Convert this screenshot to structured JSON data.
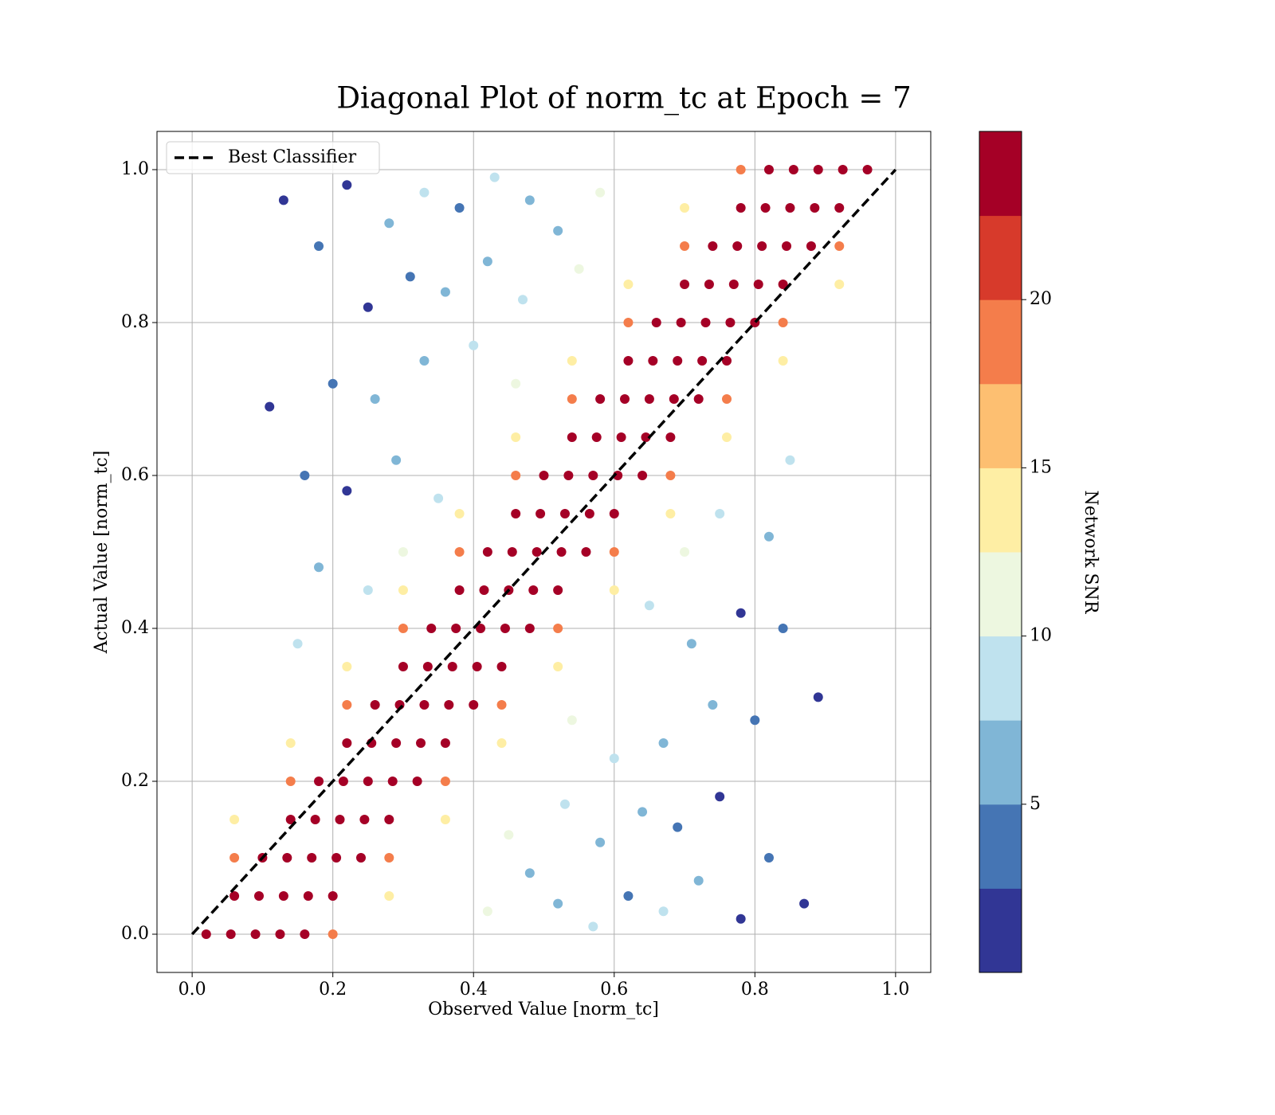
{
  "chart_data": {
    "type": "scatter",
    "title": "Diagonal Plot of norm_tc at Epoch = 7",
    "xlabel": "Observed Value [norm_tc]",
    "ylabel": "Actual Value [norm_tc]",
    "xlim": [
      -0.05,
      1.05
    ],
    "ylim": [
      -0.05,
      1.05
    ],
    "xticks": [
      {
        "value": 0,
        "label": "0.0"
      },
      0.2,
      0.4,
      0.6,
      0.8,
      {
        "value": 1,
        "label": "1.0"
      }
    ],
    "yticks": [
      {
        "value": 0,
        "label": "0.0"
      },
      0.2,
      0.4,
      0.6,
      0.8,
      {
        "value": 1,
        "label": "1.0"
      }
    ],
    "grid": true,
    "legend_loc": "upper left",
    "reference_line": {
      "name": "Best Classifier",
      "color": "#000000",
      "x": [
        0,
        1
      ],
      "y": [
        0,
        1
      ]
    },
    "colorbar": {
      "label": "Network SNR",
      "clim": [
        0,
        25
      ],
      "ticks": [
        5,
        10,
        15,
        20
      ],
      "colors": [
        "#313695",
        "#4575b4",
        "#80b6d6",
        "#bfe2ee",
        "#edf7e0",
        "#feeea4",
        "#fdbf71",
        "#f47d4b",
        "#d73a2b",
        "#a50026"
      ]
    },
    "x": [
      0.13,
      0.18,
      0.22,
      0.28,
      0.33,
      0.38,
      0.43,
      0.48,
      0.52,
      0.58,
      0.25,
      0.31,
      0.36,
      0.42,
      0.47,
      0.55,
      0.2,
      0.26,
      0.33,
      0.4,
      0.46,
      0.16,
      0.22,
      0.29,
      0.35,
      0.18,
      0.25,
      0.3,
      0.11,
      0.15,
      0.87,
      0.82,
      0.78,
      0.72,
      0.67,
      0.62,
      0.57,
      0.52,
      0.48,
      0.42,
      0.75,
      0.69,
      0.64,
      0.58,
      0.53,
      0.45,
      0.8,
      0.74,
      0.67,
      0.6,
      0.54,
      0.84,
      0.78,
      0.71,
      0.65,
      0.82,
      0.75,
      0.7,
      0.89,
      0.85,
      0.28,
      0.06,
      0.36,
      0.14,
      0.44,
      0.22,
      0.52,
      0.3,
      0.6,
      0.38,
      0.68,
      0.46,
      0.76,
      0.54,
      0.84,
      0.62,
      0.92,
      0.7,
      0.2,
      0.06,
      0.28,
      0.14,
      0.36,
      0.22,
      0.44,
      0.3,
      0.52,
      0.38,
      0.6,
      0.46,
      0.68,
      0.54,
      0.76,
      0.62,
      0.84,
      0.7,
      0.92,
      0.78,
      0.02,
      0.055,
      0.09,
      0.125,
      0.16,
      0.06,
      0.095,
      0.13,
      0.165,
      0.2,
      0.1,
      0.135,
      0.17,
      0.205,
      0.24,
      0.14,
      0.175,
      0.21,
      0.245,
      0.28,
      0.18,
      0.215,
      0.25,
      0.285,
      0.32,
      0.22,
      0.255,
      0.29,
      0.325,
      0.36,
      0.26,
      0.295,
      0.33,
      0.365,
      0.4,
      0.3,
      0.335,
      0.37,
      0.405,
      0.44,
      0.34,
      0.375,
      0.41,
      0.445,
      0.48,
      0.38,
      0.415,
      0.45,
      0.485,
      0.52,
      0.42,
      0.455,
      0.49,
      0.525,
      0.56,
      0.46,
      0.495,
      0.53,
      0.565,
      0.6,
      0.5,
      0.535,
      0.57,
      0.605,
      0.64,
      0.54,
      0.575,
      0.61,
      0.645,
      0.68,
      0.58,
      0.615,
      0.65,
      0.685,
      0.72,
      0.62,
      0.655,
      0.69,
      0.725,
      0.76,
      0.66,
      0.695,
      0.73,
      0.765,
      0.8,
      0.7,
      0.735,
      0.77,
      0.805,
      0.84,
      0.74,
      0.775,
      0.81,
      0.845,
      0.88,
      0.78,
      0.815,
      0.85,
      0.885,
      0.92,
      0.82,
      0.855,
      0.89,
      0.925,
      0.96
    ],
    "y": [
      0.96,
      0.9,
      0.98,
      0.93,
      0.97,
      0.95,
      0.99,
      0.96,
      0.92,
      0.97,
      0.82,
      0.86,
      0.84,
      0.88,
      0.83,
      0.87,
      0.72,
      0.7,
      0.75,
      0.77,
      0.72,
      0.6,
      0.58,
      0.62,
      0.57,
      0.48,
      0.45,
      0.5,
      0.69,
      0.38,
      0.04,
      0.1,
      0.02,
      0.07,
      0.03,
      0.05,
      0.01,
      0.04,
      0.08,
      0.03,
      0.18,
      0.14,
      0.16,
      0.12,
      0.17,
      0.13,
      0.28,
      0.3,
      0.25,
      0.23,
      0.28,
      0.4,
      0.42,
      0.38,
      0.43,
      0.52,
      0.55,
      0.5,
      0.31,
      0.62,
      0.05,
      0.15,
      0.15,
      0.25,
      0.25,
      0.35,
      0.35,
      0.45,
      0.45,
      0.55,
      0.55,
      0.65,
      0.65,
      0.75,
      0.75,
      0.85,
      0.85,
      0.95,
      0,
      0.1,
      0.1,
      0.2,
      0.2,
      0.3,
      0.3,
      0.4,
      0.4,
      0.5,
      0.5,
      0.6,
      0.6,
      0.7,
      0.7,
      0.8,
      0.8,
      0.9,
      0.9,
      1,
      0,
      0,
      0,
      0,
      0,
      0.05,
      0.05,
      0.05,
      0.05,
      0.05,
      0.1,
      0.1,
      0.1,
      0.1,
      0.1,
      0.15,
      0.15,
      0.15,
      0.15,
      0.15,
      0.2,
      0.2,
      0.2,
      0.2,
      0.2,
      0.25,
      0.25,
      0.25,
      0.25,
      0.25,
      0.3,
      0.3,
      0.3,
      0.3,
      0.3,
      0.35,
      0.35,
      0.35,
      0.35,
      0.35,
      0.4,
      0.4,
      0.4,
      0.4,
      0.4,
      0.45,
      0.45,
      0.45,
      0.45,
      0.45,
      0.5,
      0.5,
      0.5,
      0.5,
      0.5,
      0.55,
      0.55,
      0.55,
      0.55,
      0.55,
      0.6,
      0.6,
      0.6,
      0.6,
      0.6,
      0.65,
      0.65,
      0.65,
      0.65,
      0.65,
      0.7,
      0.7,
      0.7,
      0.7,
      0.7,
      0.75,
      0.75,
      0.75,
      0.75,
      0.75,
      0.8,
      0.8,
      0.8,
      0.8,
      0.8,
      0.85,
      0.85,
      0.85,
      0.85,
      0.85,
      0.9,
      0.9,
      0.9,
      0.9,
      0.9,
      0.95,
      0.95,
      0.95,
      0.95,
      0.95,
      1,
      1,
      1,
      1,
      1
    ],
    "c": [
      2,
      3,
      1,
      6,
      8,
      4,
      9,
      7,
      5,
      11,
      2,
      4,
      6,
      7,
      9,
      10,
      3,
      5,
      7,
      8,
      11,
      4,
      1,
      6,
      9,
      5,
      8,
      12,
      2,
      9,
      2,
      3,
      1,
      6,
      8,
      4,
      9,
      7,
      5,
      11,
      2,
      4,
      6,
      7,
      9,
      10,
      3,
      5,
      7,
      8,
      11,
      4,
      1,
      6,
      9,
      5,
      8,
      12,
      2,
      9,
      13,
      13,
      13,
      13,
      13,
      13,
      13,
      13,
      13,
      13,
      13,
      13,
      13,
      13,
      13,
      13,
      13,
      13,
      19,
      19,
      19,
      19,
      19,
      19,
      19,
      19,
      19,
      19,
      19,
      19,
      19,
      19,
      19,
      19,
      19,
      19,
      19,
      19,
      24,
      24,
      24,
      24,
      24,
      24,
      24,
      24,
      24,
      24,
      24,
      24,
      24,
      24,
      24,
      24,
      24,
      24,
      24,
      24,
      24,
      24,
      24,
      24,
      24,
      24,
      24,
      24,
      24,
      24,
      24,
      24,
      24,
      24,
      24,
      24,
      24,
      24,
      24,
      24,
      24,
      24,
      24,
      24,
      24,
      24,
      24,
      24,
      24,
      24,
      24,
      24,
      24,
      24,
      24,
      24,
      24,
      24,
      24,
      24,
      24,
      24,
      24,
      24,
      24,
      24,
      24,
      24,
      24,
      24,
      24,
      24,
      24,
      24,
      24,
      24,
      24,
      24,
      24,
      24,
      24,
      24,
      24,
      24,
      24,
      24,
      24,
      24,
      24,
      24,
      24,
      24,
      24,
      24,
      24,
      24,
      24,
      24,
      24,
      24,
      24,
      24,
      24,
      24,
      24
    ]
  }
}
